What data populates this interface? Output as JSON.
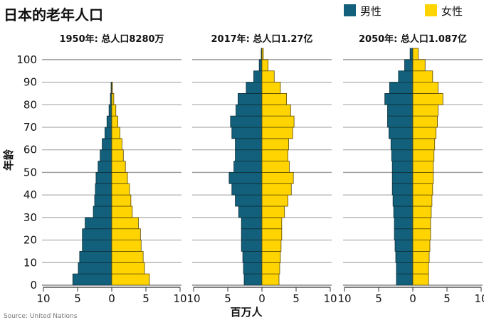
{
  "chart_data": {
    "type": "bar",
    "title": "日本的老年人口",
    "ylabel": "年龄",
    "xlabel": "百万人",
    "source": "Source: United Nations",
    "legend": [
      {
        "name": "男性",
        "color": "#12607b"
      },
      {
        "name": "女性",
        "color": "#ffd400"
      }
    ],
    "y_ticks": [
      "0",
      "10",
      "20",
      "30",
      "40",
      "50",
      "60",
      "70",
      "80",
      "90",
      "100"
    ],
    "x_ticks": [
      "10",
      "5",
      "0",
      "5",
      "10"
    ],
    "ylim": [
      0,
      100
    ],
    "xlim": [
      -10,
      10
    ],
    "age_groups": [
      "0-4",
      "5-9",
      "10-14",
      "15-19",
      "20-24",
      "25-29",
      "30-34",
      "35-39",
      "40-44",
      "45-49",
      "50-54",
      "55-59",
      "60-64",
      "65-69",
      "70-74",
      "75-79",
      "80-84",
      "85-89",
      "90-94",
      "95-99",
      "100+"
    ],
    "panels": [
      {
        "title": "1950年: 总人口8280万",
        "series": [
          {
            "name": "男性",
            "values": [
              5.7,
              4.9,
              4.7,
              4.3,
              4.3,
              3.9,
              2.7,
              2.5,
              2.4,
              2.3,
              2.0,
              1.7,
              1.4,
              1.0,
              0.7,
              0.4,
              0.2,
              0.1,
              0.0,
              0.0,
              0.0
            ]
          },
          {
            "name": "女性",
            "values": [
              5.5,
              4.8,
              4.6,
              4.3,
              4.2,
              3.9,
              3.0,
              2.8,
              2.6,
              2.3,
              2.0,
              1.7,
              1.5,
              1.2,
              0.9,
              0.6,
              0.3,
              0.1,
              0.0,
              0.0,
              0.0
            ]
          }
        ]
      },
      {
        "title": "2017年: 总人口1.27亿",
        "series": [
          {
            "name": "男性",
            "values": [
              2.6,
              2.7,
              2.8,
              3.0,
              3.0,
              3.0,
              3.4,
              3.9,
              4.4,
              4.8,
              4.1,
              3.9,
              3.9,
              4.4,
              4.6,
              3.8,
              3.5,
              2.3,
              1.2,
              0.4,
              0.1
            ]
          },
          {
            "name": "女性",
            "values": [
              2.5,
              2.6,
              2.7,
              2.8,
              2.9,
              2.9,
              3.3,
              3.8,
              4.3,
              4.6,
              4.0,
              3.8,
              3.9,
              4.5,
              4.7,
              4.2,
              3.6,
              2.7,
              1.8,
              0.9,
              0.2
            ]
          }
        ]
      },
      {
        "title": "2050年: 总人口1.087亿",
        "series": [
          {
            "name": "男性",
            "values": [
              2.4,
              2.4,
              2.5,
              2.6,
              2.7,
              2.7,
              2.8,
              2.9,
              3.0,
              3.0,
              3.0,
              3.1,
              3.2,
              3.5,
              3.7,
              3.7,
              4.1,
              3.4,
              2.1,
              1.2,
              0.4
            ]
          },
          {
            "name": "女性",
            "values": [
              2.3,
              2.3,
              2.4,
              2.5,
              2.6,
              2.6,
              2.7,
              2.8,
              2.9,
              3.0,
              3.0,
              3.1,
              3.2,
              3.4,
              3.6,
              3.7,
              4.4,
              3.7,
              2.9,
              1.8,
              0.8
            ]
          }
        ]
      }
    ]
  }
}
